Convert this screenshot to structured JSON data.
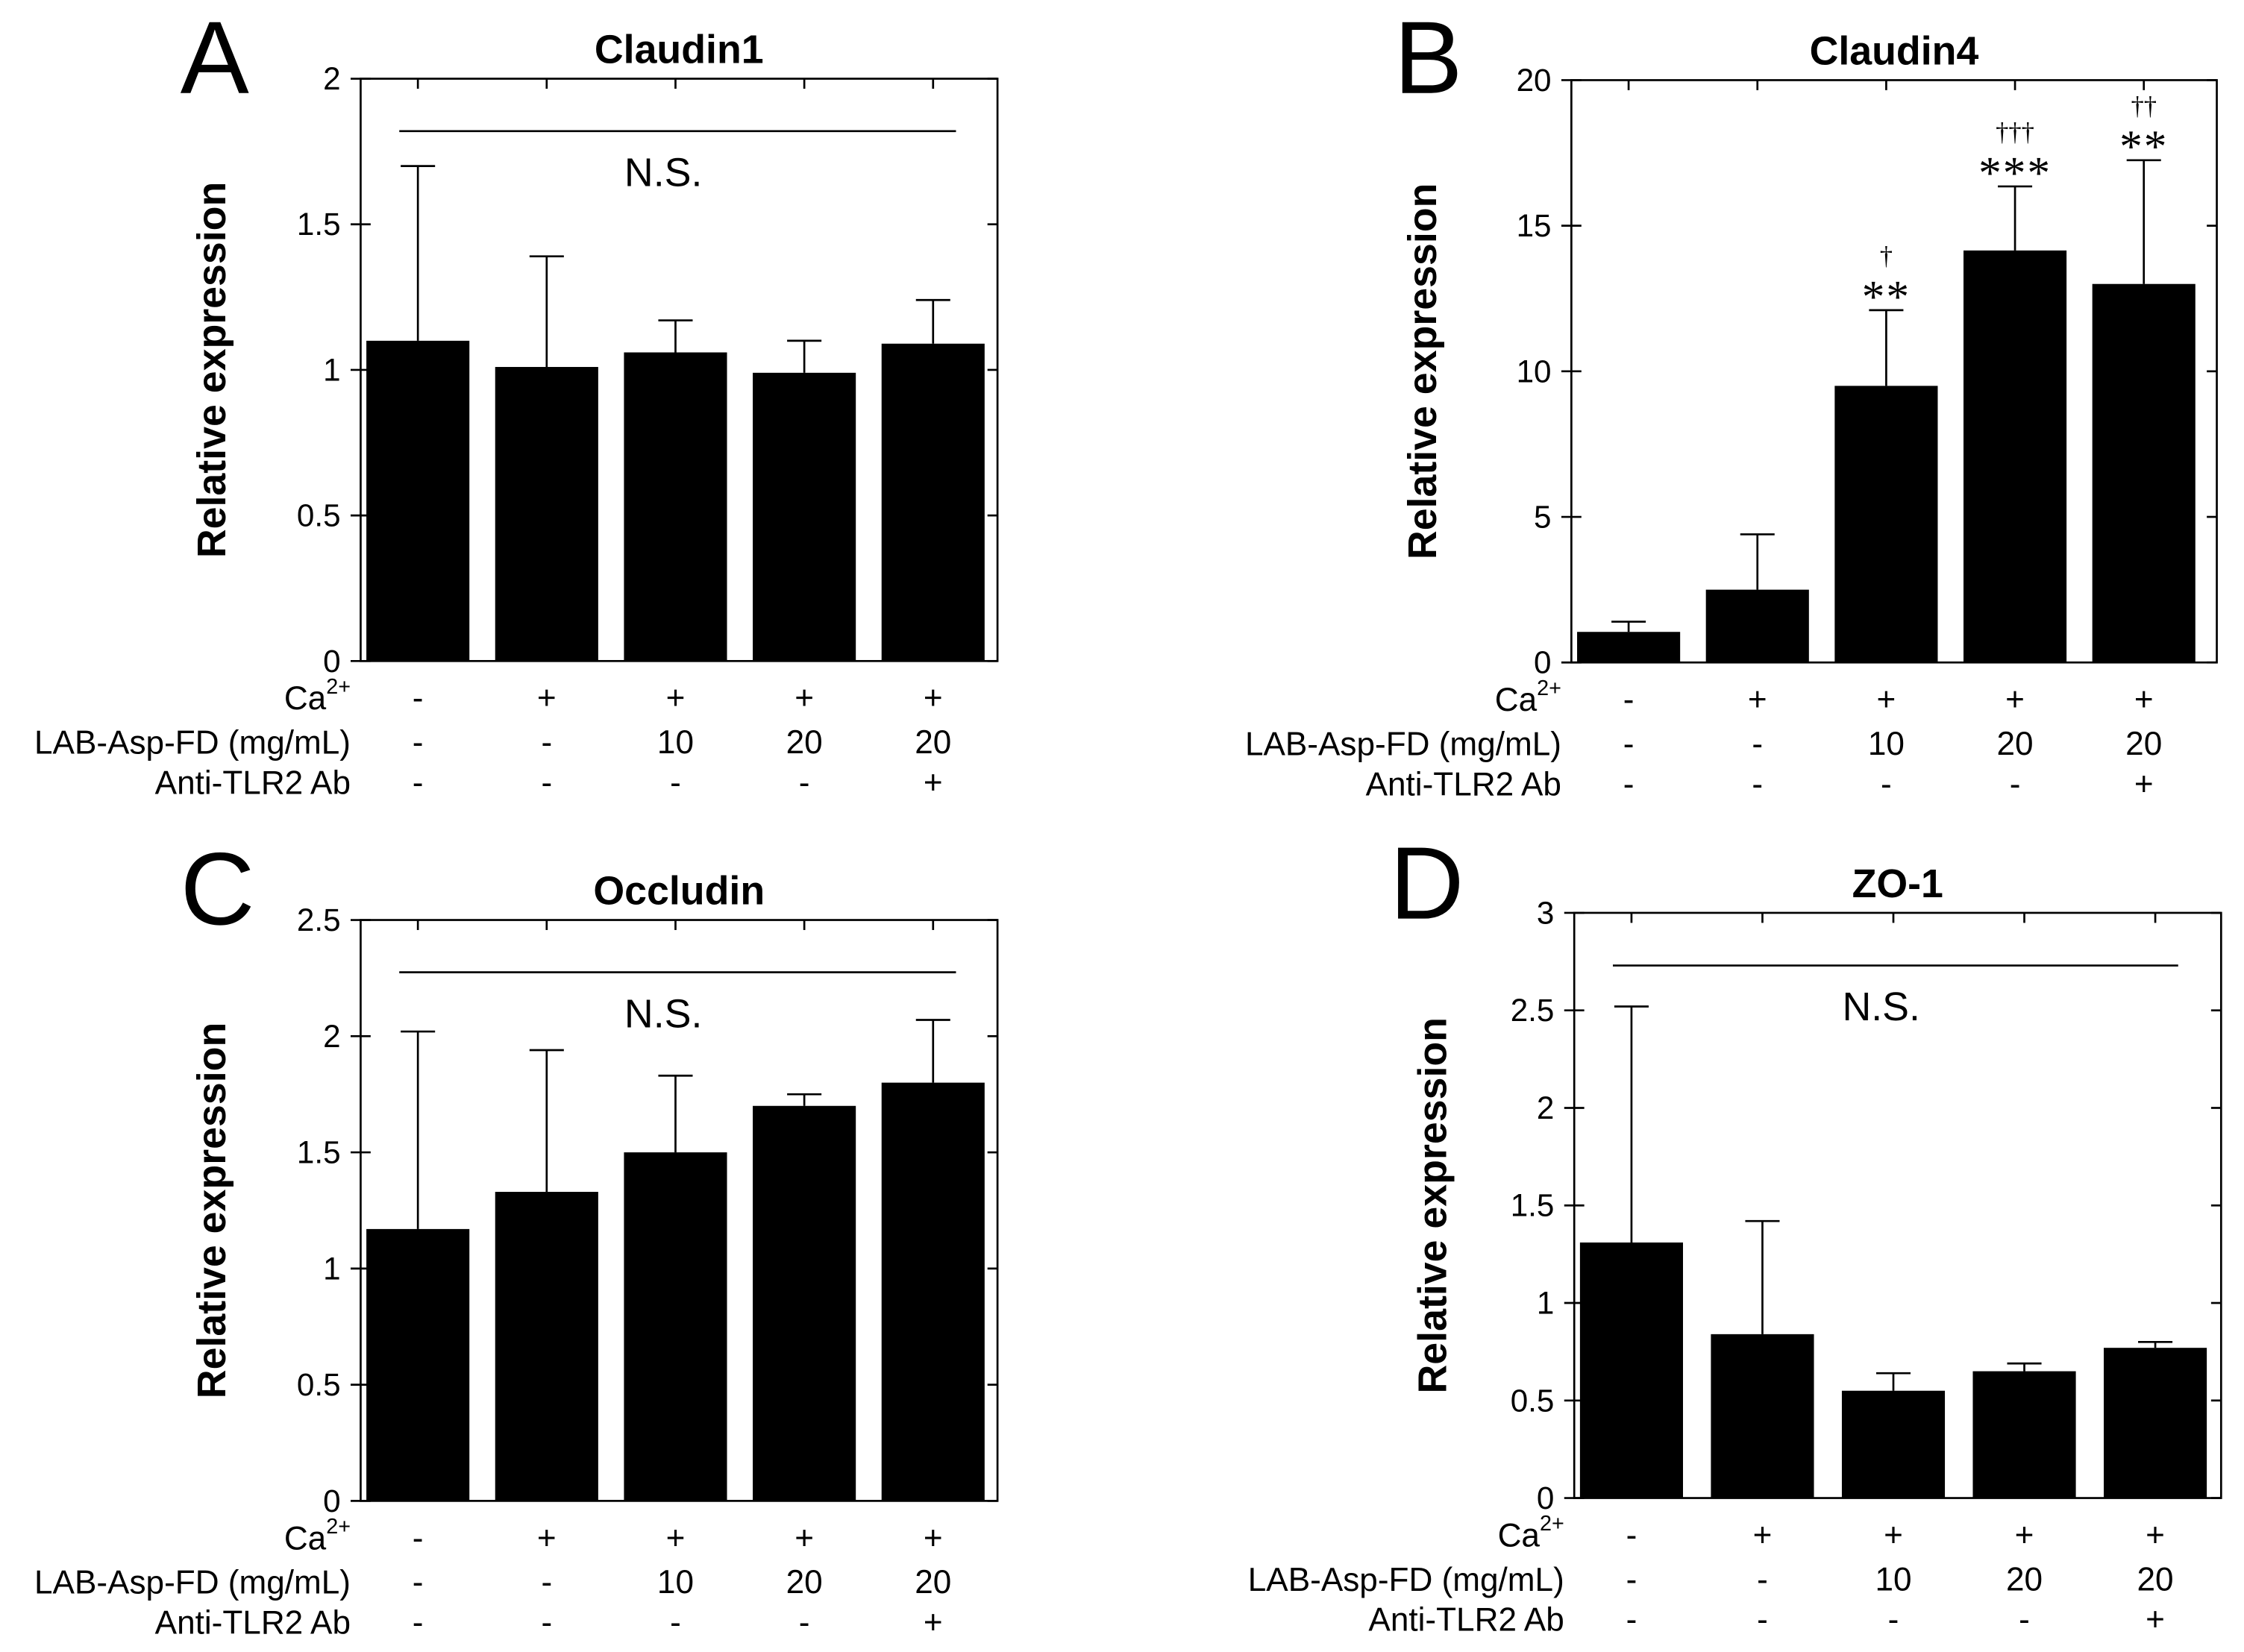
{
  "chart_data": [
    {
      "panel": "A",
      "type": "bar",
      "title": "Claudin1",
      "ylabel": "Relative expression",
      "ylim": [
        0,
        2
      ],
      "yticks": [
        0,
        0.5,
        1,
        1.5,
        2
      ],
      "ytick_labels": [
        "0",
        "0.5",
        "1",
        "1.5",
        "2"
      ],
      "values": [
        1.1,
        1.01,
        1.06,
        0.99,
        1.09
      ],
      "errors": [
        0.6,
        0.38,
        0.11,
        0.11,
        0.15
      ],
      "bar_color": "#000000",
      "annotation": "N.S.",
      "conditions": [
        {
          "label": "Ca",
          "label_sup": "2+",
          "values": [
            "-",
            "+",
            "+",
            "+",
            "+"
          ]
        },
        {
          "label": "LAB-Asp-FD (mg/mL)",
          "values": [
            "-",
            "-",
            "10",
            "20",
            "20"
          ]
        },
        {
          "label": "Anti-TLR2 Ab",
          "values": [
            "-",
            "-",
            "-",
            "-",
            "+"
          ]
        }
      ]
    },
    {
      "panel": "B",
      "type": "bar",
      "title": "Claudin4",
      "ylabel": "Relative expression",
      "ylim": [
        0,
        20
      ],
      "yticks": [
        0,
        5,
        10,
        15,
        20
      ],
      "ytick_labels": [
        "0",
        "5",
        "10",
        "15",
        "20"
      ],
      "values": [
        1.05,
        2.5,
        9.5,
        14.15,
        13.0
      ],
      "errors": [
        0.35,
        1.9,
        2.6,
        2.2,
        4.25
      ],
      "bar_color": "#000000",
      "stars": [
        null,
        null,
        "**",
        "***",
        "**"
      ],
      "daggers": [
        null,
        null,
        "†",
        "†††",
        "††"
      ],
      "conditions": [
        {
          "label": "Ca",
          "label_sup": "2+",
          "values": [
            "-",
            "+",
            "+",
            "+",
            "+"
          ]
        },
        {
          "label": "LAB-Asp-FD (mg/mL)",
          "values": [
            "-",
            "-",
            "10",
            "20",
            "20"
          ]
        },
        {
          "label": "Anti-TLR2 Ab",
          "values": [
            "-",
            "-",
            "-",
            "-",
            "+"
          ]
        }
      ]
    },
    {
      "panel": "C",
      "type": "bar",
      "title": "Occludin",
      "ylabel": "Relative expression",
      "ylim": [
        0,
        2.5
      ],
      "yticks": [
        0,
        0.5,
        1,
        1.5,
        2,
        2.5
      ],
      "ytick_labels": [
        "0",
        "0.5",
        "1",
        "1.5",
        "2",
        "2.5"
      ],
      "values": [
        1.17,
        1.33,
        1.5,
        1.7,
        1.8
      ],
      "errors": [
        0.85,
        0.61,
        0.33,
        0.05,
        0.27
      ],
      "bar_color": "#000000",
      "annotation": "N.S.",
      "conditions": [
        {
          "label": "Ca",
          "label_sup": "2+",
          "values": [
            "-",
            "+",
            "+",
            "+",
            "+"
          ]
        },
        {
          "label": "LAB-Asp-FD (mg/mL)",
          "values": [
            "-",
            "-",
            "10",
            "20",
            "20"
          ]
        },
        {
          "label": "Anti-TLR2 Ab",
          "values": [
            "-",
            "-",
            "-",
            "-",
            "+"
          ]
        }
      ]
    },
    {
      "panel": "D",
      "type": "bar",
      "title": "ZO-1",
      "ylabel": "Relative expression",
      "ylim": [
        0,
        3
      ],
      "yticks": [
        0,
        0.5,
        1,
        1.5,
        2,
        2.5,
        3
      ],
      "ytick_labels": [
        "0",
        "0.5",
        "1",
        "1.5",
        "2",
        "2.5",
        "3"
      ],
      "values": [
        1.31,
        0.84,
        0.55,
        0.65,
        0.77
      ],
      "errors": [
        1.21,
        0.58,
        0.09,
        0.04,
        0.03
      ],
      "bar_color": "#000000",
      "annotation": "N.S.",
      "conditions": [
        {
          "label": "Ca",
          "label_sup": "2+",
          "values": [
            "-",
            "+",
            "+",
            "+",
            "+"
          ]
        },
        {
          "label": "LAB-Asp-FD (mg/mL)",
          "values": [
            "-",
            "-",
            "10",
            "20",
            "20"
          ]
        },
        {
          "label": "Anti-TLR2 Ab",
          "values": [
            "-",
            "-",
            "-",
            "-",
            "+"
          ]
        }
      ]
    }
  ]
}
